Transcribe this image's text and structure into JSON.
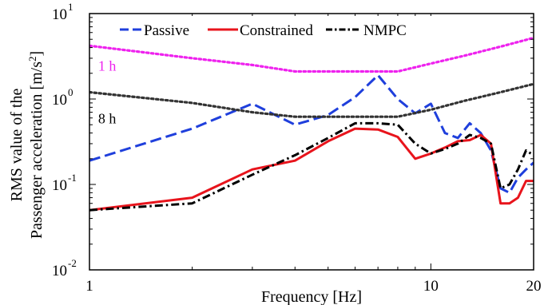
{
  "chart_data": {
    "type": "line",
    "xlabel": "Frequency [Hz]",
    "ylabel_lines": [
      "RMS value of the",
      "Passenger acceleration [m/s",
      "2",
      "]"
    ],
    "xscale": "log",
    "yscale": "log",
    "xlim": [
      1,
      20
    ],
    "ylim": [
      0.01,
      10
    ],
    "x_ticks": [
      {
        "value": 1,
        "label": "1"
      },
      {
        "value": 10,
        "label": "10"
      },
      {
        "value": 20,
        "label": "20"
      }
    ],
    "y_ticks": [
      {
        "value": 0.01,
        "base": "10",
        "exp": "-2"
      },
      {
        "value": 0.1,
        "base": "10",
        "exp": "-1"
      },
      {
        "value": 1,
        "base": "10",
        "exp": "0"
      },
      {
        "value": 10,
        "base": "10",
        "exp": "1"
      }
    ],
    "grid": false,
    "legend": {
      "placement": "top-center",
      "orientation": "horizontal"
    },
    "series": [
      {
        "name": "Passive",
        "color": "#1f3fdc",
        "dash": "dashed",
        "in_legend": true,
        "points": [
          [
            1,
            0.19
          ],
          [
            2,
            0.45
          ],
          [
            3,
            0.88
          ],
          [
            4,
            0.5
          ],
          [
            5,
            0.65
          ],
          [
            6,
            1.05
          ],
          [
            7,
            1.9
          ],
          [
            8,
            1.0
          ],
          [
            9,
            0.68
          ],
          [
            10,
            0.88
          ],
          [
            11,
            0.4
          ],
          [
            12,
            0.35
          ],
          [
            13,
            0.52
          ],
          [
            14,
            0.4
          ],
          [
            15,
            0.25
          ],
          [
            16,
            0.09
          ],
          [
            17,
            0.08
          ],
          [
            18,
            0.12
          ],
          [
            19,
            0.15
          ],
          [
            20,
            0.18
          ]
        ]
      },
      {
        "name": "Constrained",
        "color": "#e8141c",
        "dash": "solid",
        "in_legend": true,
        "points": [
          [
            1,
            0.05
          ],
          [
            2,
            0.07
          ],
          [
            3,
            0.15
          ],
          [
            4,
            0.19
          ],
          [
            5,
            0.32
          ],
          [
            6,
            0.45
          ],
          [
            7,
            0.44
          ],
          [
            8,
            0.36
          ],
          [
            9,
            0.2
          ],
          [
            10,
            0.23
          ],
          [
            11,
            0.27
          ],
          [
            12,
            0.32
          ],
          [
            13,
            0.33
          ],
          [
            14,
            0.38
          ],
          [
            15,
            0.3
          ],
          [
            16,
            0.06
          ],
          [
            17,
            0.06
          ],
          [
            18,
            0.07
          ],
          [
            19,
            0.11
          ],
          [
            20,
            0.11
          ]
        ]
      },
      {
        "name": "NMPC",
        "color": "#000000",
        "dash": "dashdot",
        "in_legend": true,
        "points": [
          [
            1,
            0.05
          ],
          [
            2,
            0.06
          ],
          [
            3,
            0.13
          ],
          [
            4,
            0.22
          ],
          [
            5,
            0.35
          ],
          [
            6,
            0.52
          ],
          [
            7,
            0.52
          ],
          [
            8,
            0.5
          ],
          [
            9,
            0.3
          ],
          [
            10,
            0.23
          ],
          [
            11,
            0.26
          ],
          [
            12,
            0.3
          ],
          [
            13,
            0.38
          ],
          [
            14,
            0.35
          ],
          [
            15,
            0.3
          ],
          [
            16,
            0.09
          ],
          [
            17,
            0.1
          ],
          [
            18,
            0.15
          ],
          [
            19,
            0.25
          ],
          [
            20,
            0.22
          ]
        ]
      },
      {
        "name": "1 h",
        "color": "#ee22ee",
        "dash": "dotted",
        "in_legend": false,
        "points": [
          [
            1,
            4.2
          ],
          [
            2,
            3.0
          ],
          [
            3,
            2.5
          ],
          [
            4,
            2.1
          ],
          [
            5,
            2.1
          ],
          [
            6,
            2.1
          ],
          [
            7,
            2.1
          ],
          [
            8,
            2.1
          ],
          [
            10,
            2.6
          ],
          [
            12.5,
            3.2
          ],
          [
            16,
            4.1
          ],
          [
            20,
            5.2
          ]
        ]
      },
      {
        "name": "8 h",
        "color": "#333333",
        "dash": "dotted",
        "in_legend": false,
        "points": [
          [
            1,
            1.2
          ],
          [
            2,
            0.9
          ],
          [
            3,
            0.7
          ],
          [
            4,
            0.62
          ],
          [
            5,
            0.62
          ],
          [
            6,
            0.62
          ],
          [
            7,
            0.62
          ],
          [
            8,
            0.62
          ],
          [
            10,
            0.75
          ],
          [
            12.5,
            0.95
          ],
          [
            16,
            1.2
          ],
          [
            20,
            1.5
          ]
        ]
      }
    ],
    "annotations": [
      {
        "text": "1 h",
        "x": 1.06,
        "y": 2.15,
        "color": "#ee22ee"
      },
      {
        "text": "8 h",
        "x": 1.06,
        "y": 0.52,
        "color": "#000000"
      }
    ]
  }
}
